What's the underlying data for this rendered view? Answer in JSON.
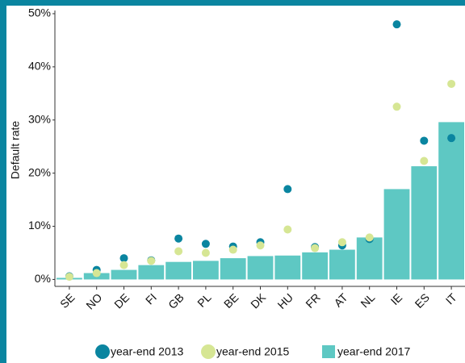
{
  "chart_data": {
    "type": "bar",
    "y_label": "Default rate",
    "categories": [
      "SE",
      "NO",
      "DE",
      "FI",
      "GB",
      "PL",
      "BE",
      "DK",
      "HU",
      "FR",
      "AT",
      "NL",
      "IE",
      "ES",
      "IT"
    ],
    "series": [
      {
        "name": "year-end 2013",
        "type": "scatter",
        "color": "#0a85a0",
        "values": [
          0.6,
          1.8,
          4.0,
          3.6,
          7.7,
          6.7,
          6.2,
          7.0,
          17.0,
          6.1,
          6.4,
          7.6,
          48.0,
          26.1,
          26.6
        ]
      },
      {
        "name": "year-end 2015",
        "type": "scatter",
        "color": "#d6e694",
        "values": [
          0.5,
          1.2,
          2.7,
          3.5,
          5.3,
          5.0,
          5.6,
          6.4,
          9.4,
          5.9,
          7.0,
          7.9,
          32.5,
          22.3,
          36.8
        ]
      },
      {
        "name": "year-end 2017",
        "type": "bar",
        "color": "#5ec8c3",
        "values": [
          0.3,
          1.2,
          1.8,
          2.7,
          3.3,
          3.5,
          4.0,
          4.4,
          4.5,
          5.1,
          5.6,
          7.9,
          17.0,
          21.3,
          29.6
        ]
      }
    ],
    "ylim": [
      -1.3,
      50.3
    ],
    "yticks": [
      {
        "value": 0,
        "label": "0%"
      },
      {
        "value": 10,
        "label": "10%"
      },
      {
        "value": 20,
        "label": "20%"
      },
      {
        "value": 30,
        "label": "30%"
      },
      {
        "value": 40,
        "label": "40%"
      },
      {
        "value": 50,
        "label": "50%"
      }
    ]
  }
}
